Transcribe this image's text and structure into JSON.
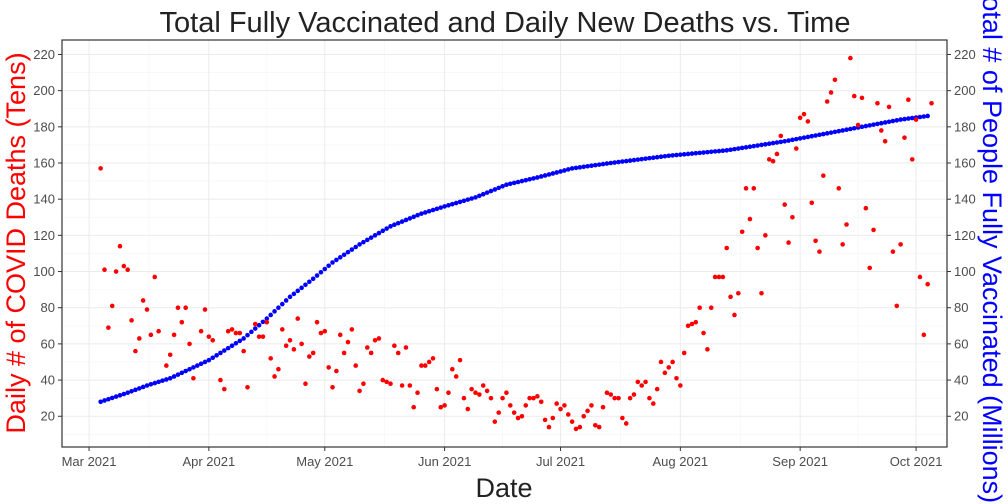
{
  "chart_data": {
    "type": "scatter",
    "title": "Total Fully Vaccinated and Daily New Deaths vs. Time",
    "xlabel": "Date",
    "ylabel": "Daily # of COVID Deaths (Tens)",
    "ylabel_right": "Total # of People Fully Vaccinated (Millions)",
    "colors": {
      "deaths": "#ff0000",
      "vaccinated": "#0000ff",
      "ylabel_left": "#ff0000",
      "ylabel_right": "#0000ff",
      "title": "#222222",
      "grid": "#ebebeb"
    },
    "grid": true,
    "x_ticks": [
      "Mar 2021",
      "Apr 2021",
      "May 2021",
      "Jun 2021",
      "Jul 2021",
      "Aug 2021",
      "Sep 2021",
      "Oct 2021"
    ],
    "x_tick_days": [
      0,
      31,
      61,
      92,
      122,
      153,
      184,
      214
    ],
    "xlim_days": [
      -7,
      222
    ],
    "x_origin": "2021-03-01",
    "ylim": [
      3,
      228
    ],
    "y_ticks": [
      "20",
      "40",
      "60",
      "80",
      "100",
      "120",
      "140",
      "160",
      "180",
      "200",
      "220"
    ],
    "y_tick_values": [
      20,
      40,
      60,
      80,
      100,
      120,
      140,
      160,
      180,
      200,
      220
    ],
    "vaccinated_range": {
      "start_day": 3,
      "end_day": 217,
      "start_value": 28,
      "end_value": 186
    },
    "vaccinated_anchors": [
      [
        3,
        28
      ],
      [
        10,
        33
      ],
      [
        15,
        37
      ],
      [
        21,
        41
      ],
      [
        31,
        51
      ],
      [
        40,
        63
      ],
      [
        46,
        74
      ],
      [
        52,
        86
      ],
      [
        58,
        96
      ],
      [
        63,
        105
      ],
      [
        70,
        115
      ],
      [
        78,
        125
      ],
      [
        86,
        132
      ],
      [
        92,
        136
      ],
      [
        100,
        141
      ],
      [
        108,
        148
      ],
      [
        116,
        152
      ],
      [
        125,
        157
      ],
      [
        135,
        160
      ],
      [
        150,
        164
      ],
      [
        165,
        167
      ],
      [
        180,
        172
      ],
      [
        195,
        178
      ],
      [
        210,
        184
      ],
      [
        217,
        186
      ]
    ],
    "deaths": [
      [
        3,
        157
      ],
      [
        4,
        101
      ],
      [
        5,
        69
      ],
      [
        6,
        81
      ],
      [
        7,
        100
      ],
      [
        8,
        114
      ],
      [
        9,
        103
      ],
      [
        10,
        101
      ],
      [
        11,
        73
      ],
      [
        12,
        56
      ],
      [
        13,
        63
      ],
      [
        14,
        84
      ],
      [
        15,
        79
      ],
      [
        16,
        65
      ],
      [
        17,
        97
      ],
      [
        18,
        67
      ],
      [
        20,
        48
      ],
      [
        21,
        54
      ],
      [
        22,
        65
      ],
      [
        23,
        80
      ],
      [
        24,
        72
      ],
      [
        25,
        80
      ],
      [
        26,
        60
      ],
      [
        27,
        41
      ],
      [
        29,
        67
      ],
      [
        30,
        79
      ],
      [
        31,
        64
      ],
      [
        32,
        62
      ],
      [
        34,
        40
      ],
      [
        35,
        35
      ],
      [
        36,
        67
      ],
      [
        37,
        68
      ],
      [
        38,
        66
      ],
      [
        39,
        66
      ],
      [
        40,
        56
      ],
      [
        41,
        36
      ],
      [
        43,
        71
      ],
      [
        44,
        64
      ],
      [
        45,
        64
      ],
      [
        46,
        72
      ],
      [
        47,
        52
      ],
      [
        48,
        42
      ],
      [
        49,
        46
      ],
      [
        50,
        68
      ],
      [
        51,
        59
      ],
      [
        52,
        62
      ],
      [
        53,
        57
      ],
      [
        54,
        74
      ],
      [
        55,
        60
      ],
      [
        56,
        38
      ],
      [
        57,
        53
      ],
      [
        58,
        55
      ],
      [
        59,
        72
      ],
      [
        60,
        66
      ],
      [
        61,
        67
      ],
      [
        62,
        47
      ],
      [
        63,
        36
      ],
      [
        64,
        45
      ],
      [
        65,
        65
      ],
      [
        66,
        55
      ],
      [
        67,
        61
      ],
      [
        68,
        68
      ],
      [
        69,
        48
      ],
      [
        70,
        34
      ],
      [
        71,
        38
      ],
      [
        72,
        58
      ],
      [
        73,
        55
      ],
      [
        74,
        62
      ],
      [
        75,
        63
      ],
      [
        76,
        40
      ],
      [
        77,
        39
      ],
      [
        78,
        38
      ],
      [
        79,
        59
      ],
      [
        80,
        55
      ],
      [
        81,
        37
      ],
      [
        82,
        58
      ],
      [
        83,
        37
      ],
      [
        84,
        25
      ],
      [
        85,
        33
      ],
      [
        86,
        48
      ],
      [
        87,
        48
      ],
      [
        88,
        50
      ],
      [
        89,
        52
      ],
      [
        90,
        35
      ],
      [
        91,
        25
      ],
      [
        92,
        26
      ],
      [
        93,
        33
      ],
      [
        94,
        46
      ],
      [
        95,
        42
      ],
      [
        96,
        51
      ],
      [
        97,
        30
      ],
      [
        98,
        24
      ],
      [
        99,
        35
      ],
      [
        100,
        33
      ],
      [
        101,
        32
      ],
      [
        102,
        37
      ],
      [
        103,
        34
      ],
      [
        104,
        30
      ],
      [
        105,
        17
      ],
      [
        106,
        22
      ],
      [
        107,
        30
      ],
      [
        108,
        33
      ],
      [
        109,
        26
      ],
      [
        110,
        22
      ],
      [
        111,
        19
      ],
      [
        112,
        20
      ],
      [
        113,
        26
      ],
      [
        114,
        30
      ],
      [
        115,
        30
      ],
      [
        116,
        31
      ],
      [
        117,
        28
      ],
      [
        118,
        18
      ],
      [
        119,
        14
      ],
      [
        120,
        19
      ],
      [
        121,
        27
      ],
      [
        122,
        24
      ],
      [
        123,
        26
      ],
      [
        124,
        21
      ],
      [
        125,
        17
      ],
      [
        126,
        13
      ],
      [
        127,
        14
      ],
      [
        128,
        20
      ],
      [
        129,
        23
      ],
      [
        130,
        26
      ],
      [
        131,
        15
      ],
      [
        132,
        14
      ],
      [
        133,
        25
      ],
      [
        134,
        33
      ],
      [
        135,
        32
      ],
      [
        136,
        30
      ],
      [
        137,
        30
      ],
      [
        138,
        19
      ],
      [
        139,
        16
      ],
      [
        140,
        30
      ],
      [
        141,
        32
      ],
      [
        142,
        39
      ],
      [
        143,
        37
      ],
      [
        144,
        39
      ],
      [
        145,
        30
      ],
      [
        146,
        27
      ],
      [
        147,
        35
      ],
      [
        148,
        50
      ],
      [
        149,
        44
      ],
      [
        150,
        47
      ],
      [
        151,
        50
      ],
      [
        152,
        41
      ],
      [
        153,
        37
      ],
      [
        154,
        55
      ],
      [
        155,
        70
      ],
      [
        156,
        71
      ],
      [
        157,
        72
      ],
      [
        158,
        80
      ],
      [
        159,
        66
      ],
      [
        160,
        57
      ],
      [
        161,
        80
      ],
      [
        162,
        97
      ],
      [
        163,
        97
      ],
      [
        164,
        97
      ],
      [
        165,
        113
      ],
      [
        166,
        86
      ],
      [
        167,
        76
      ],
      [
        168,
        88
      ],
      [
        169,
        122
      ],
      [
        170,
        146
      ],
      [
        171,
        129
      ],
      [
        172,
        146
      ],
      [
        173,
        113
      ],
      [
        174,
        88
      ],
      [
        175,
        120
      ],
      [
        176,
        162
      ],
      [
        177,
        161
      ],
      [
        178,
        165
      ],
      [
        179,
        175
      ],
      [
        180,
        137
      ],
      [
        181,
        116
      ],
      [
        182,
        130
      ],
      [
        183,
        168
      ],
      [
        184,
        185
      ],
      [
        185,
        187
      ],
      [
        186,
        183
      ],
      [
        187,
        138
      ],
      [
        188,
        117
      ],
      [
        189,
        111
      ],
      [
        190,
        153
      ],
      [
        191,
        194
      ],
      [
        192,
        199
      ],
      [
        193,
        206
      ],
      [
        194,
        146
      ],
      [
        195,
        115
      ],
      [
        196,
        126
      ],
      [
        197,
        218
      ],
      [
        198,
        197
      ],
      [
        199,
        181
      ],
      [
        200,
        196
      ],
      [
        201,
        135
      ],
      [
        202,
        102
      ],
      [
        203,
        123
      ],
      [
        204,
        193
      ],
      [
        205,
        178
      ],
      [
        206,
        172
      ],
      [
        207,
        191
      ],
      [
        208,
        111
      ],
      [
        209,
        81
      ],
      [
        210,
        115
      ],
      [
        211,
        174
      ],
      [
        212,
        195
      ],
      [
        213,
        162
      ],
      [
        214,
        184
      ],
      [
        215,
        97
      ],
      [
        216,
        65
      ],
      [
        217,
        93
      ],
      [
        218,
        193
      ]
    ]
  }
}
